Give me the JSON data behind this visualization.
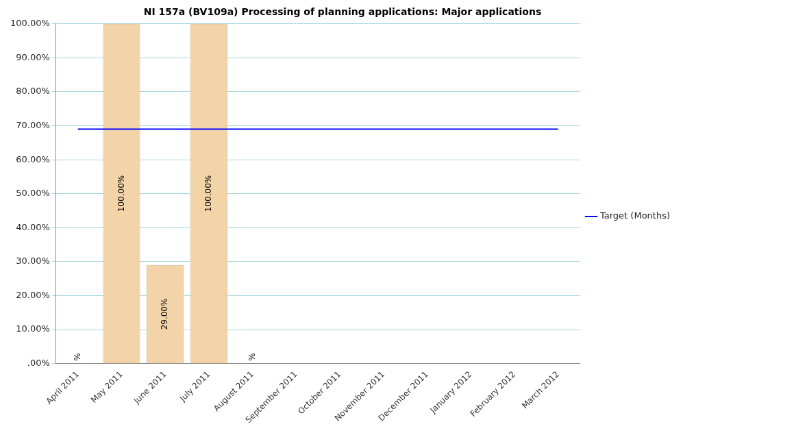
{
  "chart_data": {
    "type": "bar",
    "title": "NI 157a (BV109a) Processing of planning applications: Major applications",
    "categories": [
      "April 2011",
      "May 2011",
      "June 2011",
      "July 2011",
      "August 2011",
      "September 2011",
      "October 2011",
      "November 2011",
      "December 2011",
      "January 2012",
      "February 2012",
      "March 2012"
    ],
    "series": [
      {
        "color": "#f3d4a8",
        "values": [
          0,
          100,
          29,
          100,
          0,
          null,
          null,
          null,
          null,
          null,
          null,
          null
        ],
        "value_labels": [
          "%",
          "100.00%",
          "29.00%",
          "100.00%",
          "%",
          null,
          null,
          null,
          null,
          null,
          null,
          null
        ]
      },
      {
        "type": "line",
        "name": "Target (Months)",
        "color": "#0000ff",
        "values": [
          69,
          69,
          69,
          69,
          69,
          69,
          69,
          69,
          69,
          69,
          69,
          69
        ]
      }
    ],
    "ylim": [
      0,
      100
    ],
    "yticks": [
      {
        "value": 0,
        "label": ".00%"
      },
      {
        "value": 10,
        "label": "10.00%"
      },
      {
        "value": 20,
        "label": "20.00%"
      },
      {
        "value": 30,
        "label": "30.00%"
      },
      {
        "value": 40,
        "label": "40.00%"
      },
      {
        "value": 50,
        "label": "50.00%"
      },
      {
        "value": 60,
        "label": "60.00%"
      },
      {
        "value": 70,
        "label": "70.00%"
      },
      {
        "value": 80,
        "label": "80.00%"
      },
      {
        "value": 90,
        "label": "90.00%"
      },
      {
        "value": 100,
        "label": "100.00%"
      }
    ],
    "grid": "y",
    "legend": "right",
    "marker": "none",
    "line_style": "solid"
  }
}
